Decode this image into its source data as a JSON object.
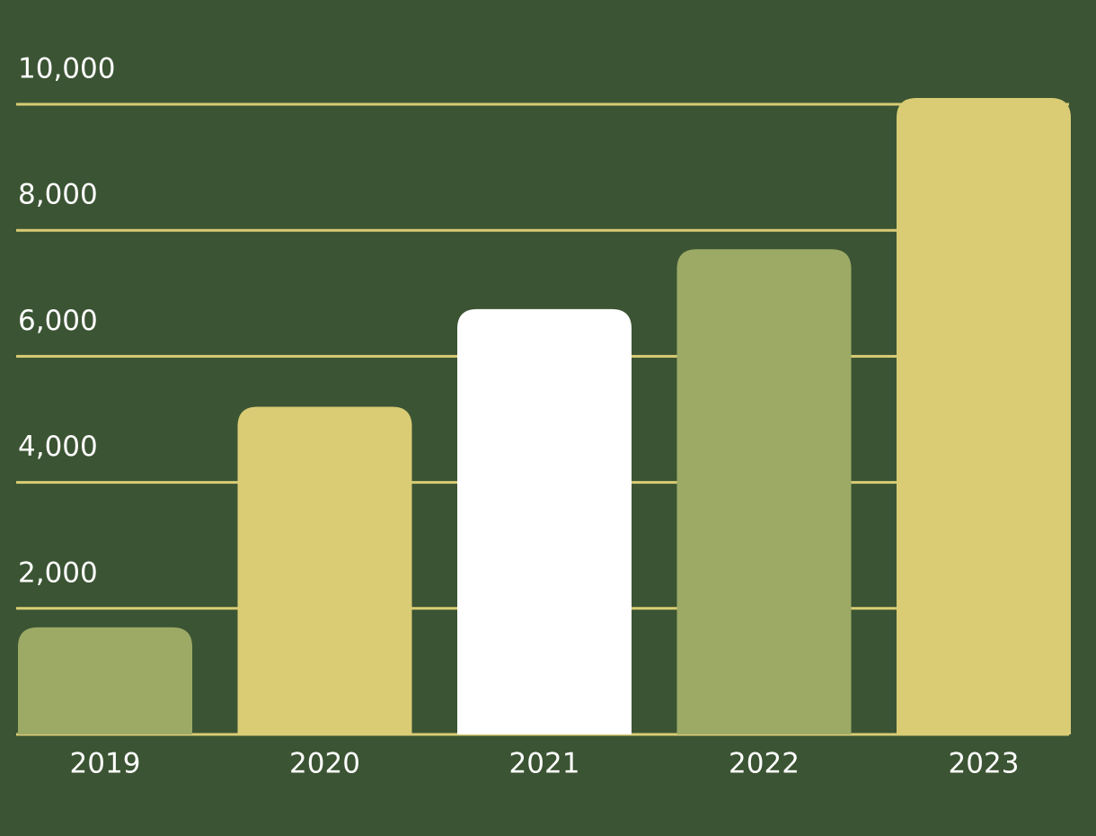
{
  "chart_data": {
    "type": "bar",
    "categories": [
      "2019",
      "2020",
      "2021",
      "2022",
      "2023"
    ],
    "values": [
      1700,
      5200,
      6750,
      7700,
      10100
    ],
    "colors": [
      "#9caa66",
      "#d9cc75",
      "#ffffff",
      "#9caa66",
      "#d9cc75"
    ],
    "ylim": [
      0,
      10000
    ],
    "yticks": [
      {
        "value": 2000,
        "label": "2,000"
      },
      {
        "value": 4000,
        "label": "4,000"
      },
      {
        "value": 6000,
        "label": "6,000"
      },
      {
        "value": 8000,
        "label": "8,000"
      },
      {
        "value": 10000,
        "label": "10,000"
      }
    ],
    "grid": true,
    "grid_color": "#d9cc75",
    "background": "#3b5433"
  }
}
